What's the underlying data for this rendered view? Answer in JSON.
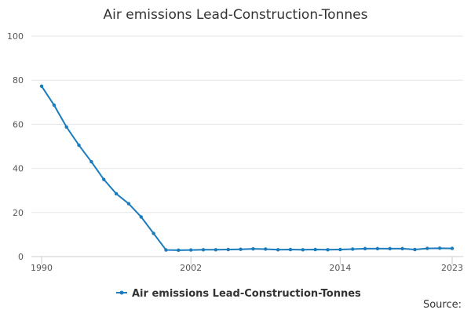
{
  "chart_data": {
    "type": "line",
    "title": "Air emissions Lead-Construction-Tonnes",
    "x": [
      1990,
      1991,
      1992,
      1993,
      1994,
      1995,
      1996,
      1997,
      1998,
      1999,
      2000,
      2001,
      2002,
      2003,
      2004,
      2005,
      2006,
      2007,
      2008,
      2009,
      2010,
      2011,
      2012,
      2013,
      2014,
      2015,
      2016,
      2017,
      2018,
      2019,
      2020,
      2021,
      2022,
      2023
    ],
    "series": [
      {
        "name": "Air emissions Lead-Construction-Tonnes",
        "color": "#1a7bbd",
        "values": [
          77.3,
          68.7,
          58.8,
          50.5,
          43,
          35,
          28.5,
          24,
          18,
          10.5,
          3,
          2.9,
          3,
          3.1,
          3.1,
          3.2,
          3.3,
          3.5,
          3.4,
          3.1,
          3.2,
          3.1,
          3.2,
          3.1,
          3.2,
          3.4,
          3.6,
          3.6,
          3.6,
          3.6,
          3.2,
          3.7,
          3.8,
          3.7
        ]
      }
    ],
    "xlim": [
      1990,
      2023
    ],
    "xticks": [
      1990,
      2002,
      2014,
      2023
    ],
    "ylim": [
      0,
      100
    ],
    "yticks": [
      0,
      20,
      40,
      60,
      80,
      100
    ],
    "grid": true,
    "source": "Source:"
  }
}
